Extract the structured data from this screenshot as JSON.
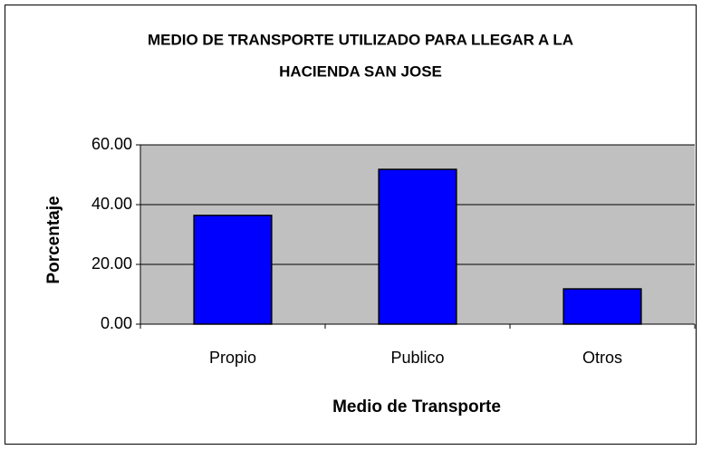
{
  "chart_data": {
    "type": "bar",
    "title": [
      "MEDIO DE TRANSPORTE UTILIZADO PARA LLEGAR A LA",
      "HACIENDA SAN JOSE"
    ],
    "x_label": "Medio de Transporte",
    "y_label": "Porcentaje",
    "categories": [
      "Propio",
      "Publico",
      "Otros"
    ],
    "values": [
      36.4,
      51.8,
      11.8
    ],
    "color": "#0000ff",
    "ylim": [
      0,
      60
    ],
    "yticks": [
      {
        "value": 0,
        "label": "0.00"
      },
      {
        "value": 20,
        "label": "20.00"
      },
      {
        "value": 40,
        "label": "40.00"
      },
      {
        "value": 60,
        "label": "60.00"
      }
    ],
    "grid": true
  }
}
